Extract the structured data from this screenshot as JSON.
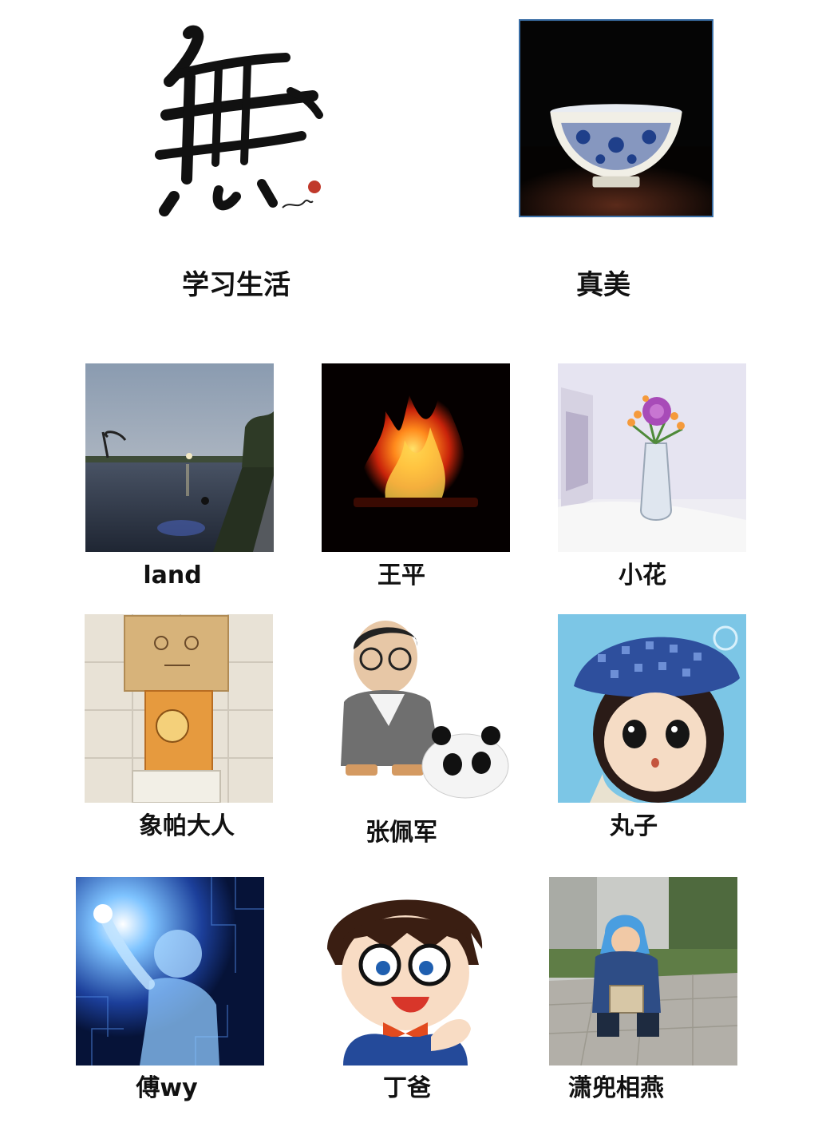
{
  "featured": [
    {
      "name": "study-life",
      "label": "学习生活",
      "image": "wu-calligraphy"
    },
    {
      "name": "zhenmei",
      "label": "真美",
      "image": "porcelain-bowl"
    }
  ],
  "members": [
    {
      "name": "land",
      "label": "land",
      "image": "river-dusk"
    },
    {
      "name": "wangping",
      "label": "王平",
      "image": "fire"
    },
    {
      "name": "xiaohua",
      "label": "小花",
      "image": "flower-vase"
    },
    {
      "name": "xiangpa",
      "label": "象帕大人",
      "image": "cardboard-robot"
    },
    {
      "name": "zhangpeijun",
      "label": "张佩军",
      "image": "cartoon-man-panda"
    },
    {
      "name": "wanzi",
      "label": "丸子",
      "image": "doll-blue-beret"
    },
    {
      "name": "fuwy",
      "label": "傅wy",
      "image": "digital-human"
    },
    {
      "name": "dingba",
      "label": "丁爸",
      "image": "cartoon-detective"
    },
    {
      "name": "xiaodou",
      "label": "潇兜相燕",
      "image": "child-with-box"
    }
  ]
}
